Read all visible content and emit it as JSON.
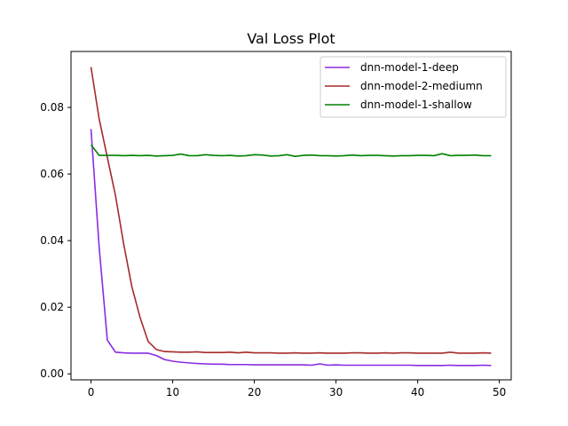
{
  "chart_data": {
    "type": "line",
    "title": "Val Loss Plot",
    "xlabel": "",
    "ylabel": "",
    "xlim": [
      -2.45,
      51.45
    ],
    "ylim": [
      -0.0018,
      0.0968
    ],
    "xticks": [
      0,
      10,
      20,
      30,
      40,
      50
    ],
    "xtick_labels": [
      "0",
      "10",
      "20",
      "30",
      "40",
      "50"
    ],
    "yticks": [
      0.0,
      0.02,
      0.04,
      0.06,
      0.08
    ],
    "ytick_labels": [
      "0.00",
      "0.02",
      "0.04",
      "0.06",
      "0.08"
    ],
    "grid": false,
    "legend_position": "top-right",
    "x": [
      0,
      1,
      2,
      3,
      4,
      5,
      6,
      7,
      8,
      9,
      10,
      11,
      12,
      13,
      14,
      15,
      16,
      17,
      18,
      19,
      20,
      21,
      22,
      23,
      24,
      25,
      26,
      27,
      28,
      29,
      30,
      31,
      32,
      33,
      34,
      35,
      36,
      37,
      38,
      39,
      40,
      41,
      42,
      43,
      44,
      45,
      46,
      47,
      48,
      49
    ],
    "series": [
      {
        "name": "dnn-model-1-deep",
        "color": "#8a2be2",
        "values": [
          0.0735,
          0.038,
          0.0101,
          0.0065,
          0.0063,
          0.0062,
          0.0062,
          0.0062,
          0.0055,
          0.0043,
          0.0038,
          0.0035,
          0.0033,
          0.0031,
          0.003,
          0.0029,
          0.0029,
          0.0028,
          0.0028,
          0.0028,
          0.0027,
          0.0027,
          0.0027,
          0.0027,
          0.0027,
          0.0027,
          0.0027,
          0.0026,
          0.003,
          0.0026,
          0.0027,
          0.0026,
          0.0026,
          0.0026,
          0.0026,
          0.0026,
          0.0026,
          0.0026,
          0.0026,
          0.0026,
          0.0025,
          0.0025,
          0.0025,
          0.0025,
          0.0026,
          0.0025,
          0.0025,
          0.0025,
          0.0026,
          0.0025
        ]
      },
      {
        "name": "dnn-model-2-mediumn",
        "color": "#a52a2a",
        "values": [
          0.0921,
          0.0765,
          0.065,
          0.0535,
          0.039,
          0.0262,
          0.017,
          0.0097,
          0.0073,
          0.0067,
          0.0066,
          0.0065,
          0.0065,
          0.0066,
          0.0064,
          0.0064,
          0.0064,
          0.0065,
          0.0063,
          0.0065,
          0.0063,
          0.0063,
          0.0063,
          0.0062,
          0.0062,
          0.0063,
          0.0062,
          0.0062,
          0.0063,
          0.0062,
          0.0062,
          0.0062,
          0.0063,
          0.0063,
          0.0062,
          0.0062,
          0.0063,
          0.0062,
          0.0063,
          0.0063,
          0.0062,
          0.0062,
          0.0062,
          0.0062,
          0.0065,
          0.0062,
          0.0062,
          0.0062,
          0.0063,
          0.0062
        ]
      },
      {
        "name": "dnn-model-1-shallow",
        "color": "#008000",
        "values": [
          0.0688,
          0.0656,
          0.0656,
          0.0656,
          0.0655,
          0.0656,
          0.0655,
          0.0656,
          0.0654,
          0.0655,
          0.0656,
          0.066,
          0.0655,
          0.0655,
          0.0658,
          0.0656,
          0.0655,
          0.0656,
          0.0654,
          0.0655,
          0.0658,
          0.0657,
          0.0654,
          0.0655,
          0.0658,
          0.0653,
          0.0656,
          0.0657,
          0.0655,
          0.0655,
          0.0654,
          0.0655,
          0.0657,
          0.0655,
          0.0656,
          0.0656,
          0.0655,
          0.0654,
          0.0655,
          0.0655,
          0.0656,
          0.0656,
          0.0655,
          0.0661,
          0.0655,
          0.0656,
          0.0656,
          0.0657,
          0.0655,
          0.0655
        ]
      }
    ]
  }
}
